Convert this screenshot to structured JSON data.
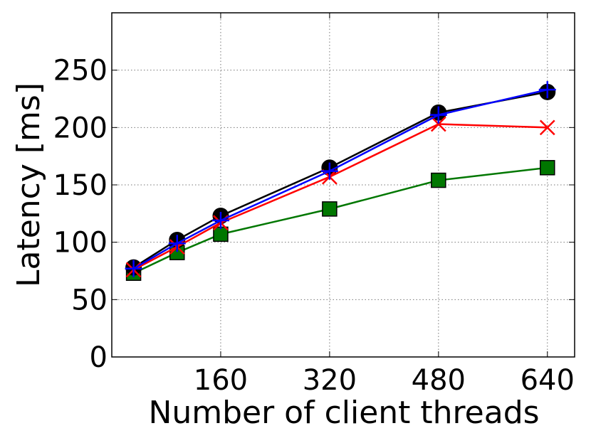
{
  "chart_data": {
    "type": "line",
    "xlabel": "Number of client threads",
    "ylabel": "Latency [ms]",
    "x": [
      32,
      96,
      160,
      320,
      480,
      640
    ],
    "xlim": [
      0,
      680
    ],
    "xticks": [
      160,
      320,
      480,
      640
    ],
    "ylim": [
      0,
      300
    ],
    "yticks": [
      0,
      50,
      100,
      150,
      200,
      250
    ],
    "grid": true,
    "series": [
      {
        "color": "#007700",
        "marker": "square",
        "values": [
          73,
          91,
          107,
          129,
          154,
          165
        ]
      },
      {
        "color": "#000000",
        "marker": "circle",
        "values": [
          78,
          102,
          123,
          165,
          213,
          231
        ]
      },
      {
        "color": "#ff0000",
        "marker": "x",
        "values": [
          76,
          96,
          117,
          157,
          203,
          200
        ]
      },
      {
        "color": "#0000ff",
        "marker": "plus",
        "values": [
          77,
          99,
          119,
          162,
          211,
          233
        ]
      }
    ]
  }
}
